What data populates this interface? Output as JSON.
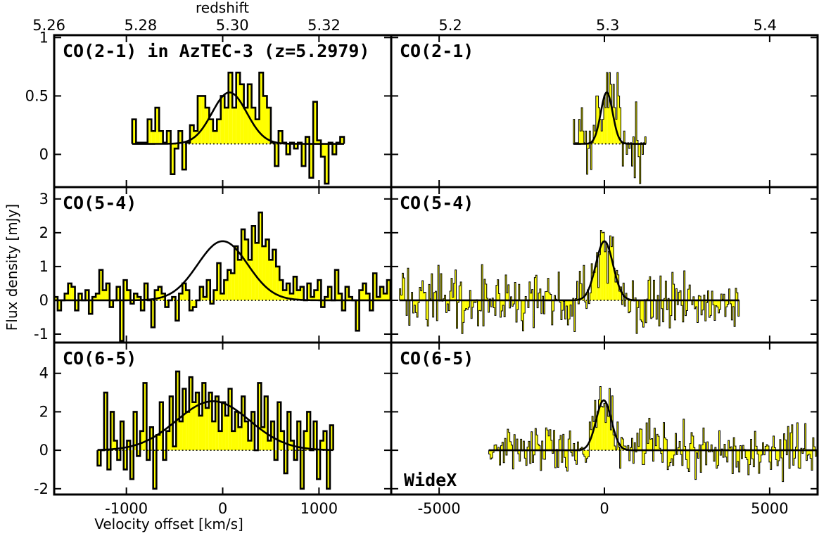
{
  "chart_data": {
    "type": "line",
    "xlabel": "Velocity offset [km/s]",
    "ylabel": "Flux density [mJy]",
    "top_axis_label": "redshift",
    "grid": false,
    "colors": {
      "fill": "#ffff00",
      "line": "#000000"
    },
    "columns": [
      {
        "xlim": [
          -1750,
          1750
        ],
        "xticks": [
          "-1000",
          "0",
          "1000"
        ],
        "xtick_values": [
          -1000,
          0,
          1000
        ],
        "top_ticks": [
          "5.26",
          "5.28",
          "5.30",
          "5.32"
        ],
        "top_tick_values": [
          5.26,
          5.28,
          5.3,
          5.32
        ]
      },
      {
        "xlim": [
          -6450,
          6450
        ],
        "xticks": [
          "-5000",
          "0",
          "5000"
        ],
        "xtick_values": [
          -5000,
          0,
          5000
        ],
        "top_ticks": [
          "5.2",
          "5.3",
          "5.4"
        ],
        "top_tick_values": [
          5.2,
          5.3,
          5.4
        ]
      }
    ],
    "rows": [
      {
        "ylim": [
          -0.28,
          1.02
        ],
        "yticks": [
          "0",
          "0.5",
          "1"
        ],
        "ytick_values": [
          0,
          0.5,
          1
        ]
      },
      {
        "ylim": [
          -1.25,
          3.35
        ],
        "yticks": [
          "-1",
          "0",
          "1",
          "2",
          "3"
        ],
        "ytick_values": [
          -1,
          0,
          1,
          2,
          3
        ]
      },
      {
        "ylim": [
          -2.3,
          5.6
        ],
        "yticks": [
          "-2",
          "0",
          "2",
          "4"
        ],
        "ytick_values": [
          -2,
          0,
          2,
          4
        ]
      }
    ],
    "panels": [
      {
        "row": 0,
        "col": 0,
        "label": "CO(2-1) in AzTEC-3 (z=5.2979)",
        "x_start": -940,
        "bin": 40,
        "baseline": 0.09,
        "fit": {
          "amp": 0.44,
          "center": 70,
          "sigma": 180
        },
        "values": [
          0.3,
          0.1,
          0.1,
          0.1,
          0.3,
          0.2,
          0.4,
          0.2,
          0.1,
          0.2,
          -0.17,
          0.05,
          0.2,
          -0.13,
          0.1,
          0.25,
          0.2,
          0.5,
          0.5,
          0.4,
          0.3,
          0.2,
          0.3,
          0.5,
          0.4,
          0.7,
          0.4,
          0.7,
          0.6,
          0.4,
          0.6,
          0.4,
          0.3,
          0.7,
          0.5,
          0.4,
          0.1,
          -0.1,
          0.2,
          0.1,
          0.0,
          0.1,
          0.05,
          0.1,
          -0.1,
          0.15,
          -0.2,
          0.45,
          0.12,
          -0.02,
          -0.25,
          0.1,
          0.0,
          0.1,
          0.15
        ]
      },
      {
        "row": 0,
        "col": 1,
        "label": "CO(2-1)",
        "x_start": -940,
        "bin": 40,
        "baseline": 0.09,
        "fit": {
          "amp": 0.44,
          "center": 70,
          "sigma": 180
        },
        "values": [
          0.3,
          0.1,
          0.1,
          0.1,
          0.3,
          0.2,
          0.4,
          0.2,
          0.1,
          0.2,
          -0.17,
          0.05,
          0.2,
          -0.13,
          0.1,
          0.25,
          0.2,
          0.5,
          0.5,
          0.4,
          0.3,
          0.2,
          0.3,
          0.5,
          0.4,
          0.7,
          0.4,
          0.7,
          0.6,
          0.4,
          0.6,
          0.4,
          0.3,
          0.7,
          0.5,
          0.4,
          0.1,
          -0.1,
          0.2,
          0.1,
          0.0,
          0.1,
          0.05,
          0.1,
          -0.1,
          0.15,
          -0.2,
          0.45,
          0.12,
          -0.02,
          -0.25,
          0.1,
          0.0,
          0.1,
          0.15
        ]
      },
      {
        "row": 1,
        "col": 0,
        "label": "CO(5-4)",
        "x_start": -1750,
        "bin": 36,
        "baseline": 0,
        "fit": {
          "amp": 1.75,
          "center": 0,
          "sigma": 260
        },
        "values": [
          0.1,
          -0.3,
          0.0,
          0.2,
          0.5,
          0.4,
          -0.3,
          0.2,
          0.0,
          0.3,
          -0.4,
          0.1,
          0.2,
          0.9,
          0.3,
          0.5,
          -0.2,
          0.0,
          0.4,
          -1.2,
          0.6,
          0.3,
          -0.1,
          0.2,
          0.1,
          -0.3,
          0.5,
          0.0,
          -0.8,
          0.3,
          0.4,
          0.2,
          -0.2,
          0.0,
          0.1,
          -0.6,
          0.2,
          0.5,
          0.3,
          -0.3,
          -0.2,
          0.0,
          0.4,
          0.1,
          0.6,
          -0.1,
          0.3,
          1.1,
          0.2,
          0.6,
          0.9,
          0.8,
          1.6,
          1.2,
          2.1,
          1.8,
          1.2,
          2.2,
          1.7,
          2.6,
          1.6,
          1.8,
          1.2,
          1.5,
          1.0,
          0.6,
          0.3,
          0.5,
          0.2,
          0.7,
          0.3,
          0.4,
          0.0,
          0.5,
          0.1,
          0.3,
          0.6,
          -0.2,
          0.1,
          0.4,
          0.0,
          0.9,
          0.2,
          -0.3,
          0.4,
          0.1,
          0.0,
          -0.9,
          0.3,
          0.5,
          0.2,
          -0.3,
          0.8,
          0.1,
          0.4,
          0.2,
          0.6
        ]
      },
      {
        "row": 1,
        "col": 1,
        "label": "CO(5-4)",
        "x_start": -6200,
        "bin": 40,
        "baseline": 0,
        "fit": {
          "amp": 1.75,
          "center": 0,
          "sigma": 260
        },
        "values": []
      },
      {
        "row": 2,
        "col": 0,
        "label": "CO(6-5)",
        "x_start": -1300,
        "bin": 34,
        "baseline": 0,
        "fit": {
          "amp": 2.55,
          "center": -100,
          "sigma": 380
        },
        "values": [
          -0.8,
          0.0,
          3.0,
          -1.0,
          2.0,
          0.5,
          -0.5,
          1.5,
          -1.0,
          0.5,
          -1.5,
          2.0,
          -0.3,
          1.0,
          3.5,
          -0.5,
          1.2,
          -2.0,
          0.8,
          2.5,
          -0.5,
          1.0,
          2.8,
          0.2,
          4.1,
          1.5,
          3.2,
          2.0,
          3.8,
          2.5,
          3.0,
          1.8,
          3.5,
          2.2,
          3.0,
          1.5,
          2.8,
          1.0,
          2.5,
          1.8,
          3.2,
          1.0,
          2.0,
          1.2,
          2.8,
          1.5,
          0.5,
          2.0,
          0.0,
          3.5,
          1.2,
          2.8,
          0.5,
          1.5,
          -0.5,
          2.5,
          1.0,
          -1.2,
          2.0,
          0.5,
          -0.5,
          1.5,
          -2.0,
          1.0,
          2.0,
          0.0,
          1.5,
          -1.5,
          0.5,
          1.0,
          -2.0,
          1.3
        ]
      },
      {
        "row": 2,
        "col": 1,
        "label": "CO(6-5)",
        "instrument": "WideX",
        "x_start": -3500,
        "bin": 40,
        "baseline": 0,
        "fit": {
          "amp": 2.6,
          "center": -20,
          "sigma": 230
        },
        "values": []
      }
    ]
  }
}
